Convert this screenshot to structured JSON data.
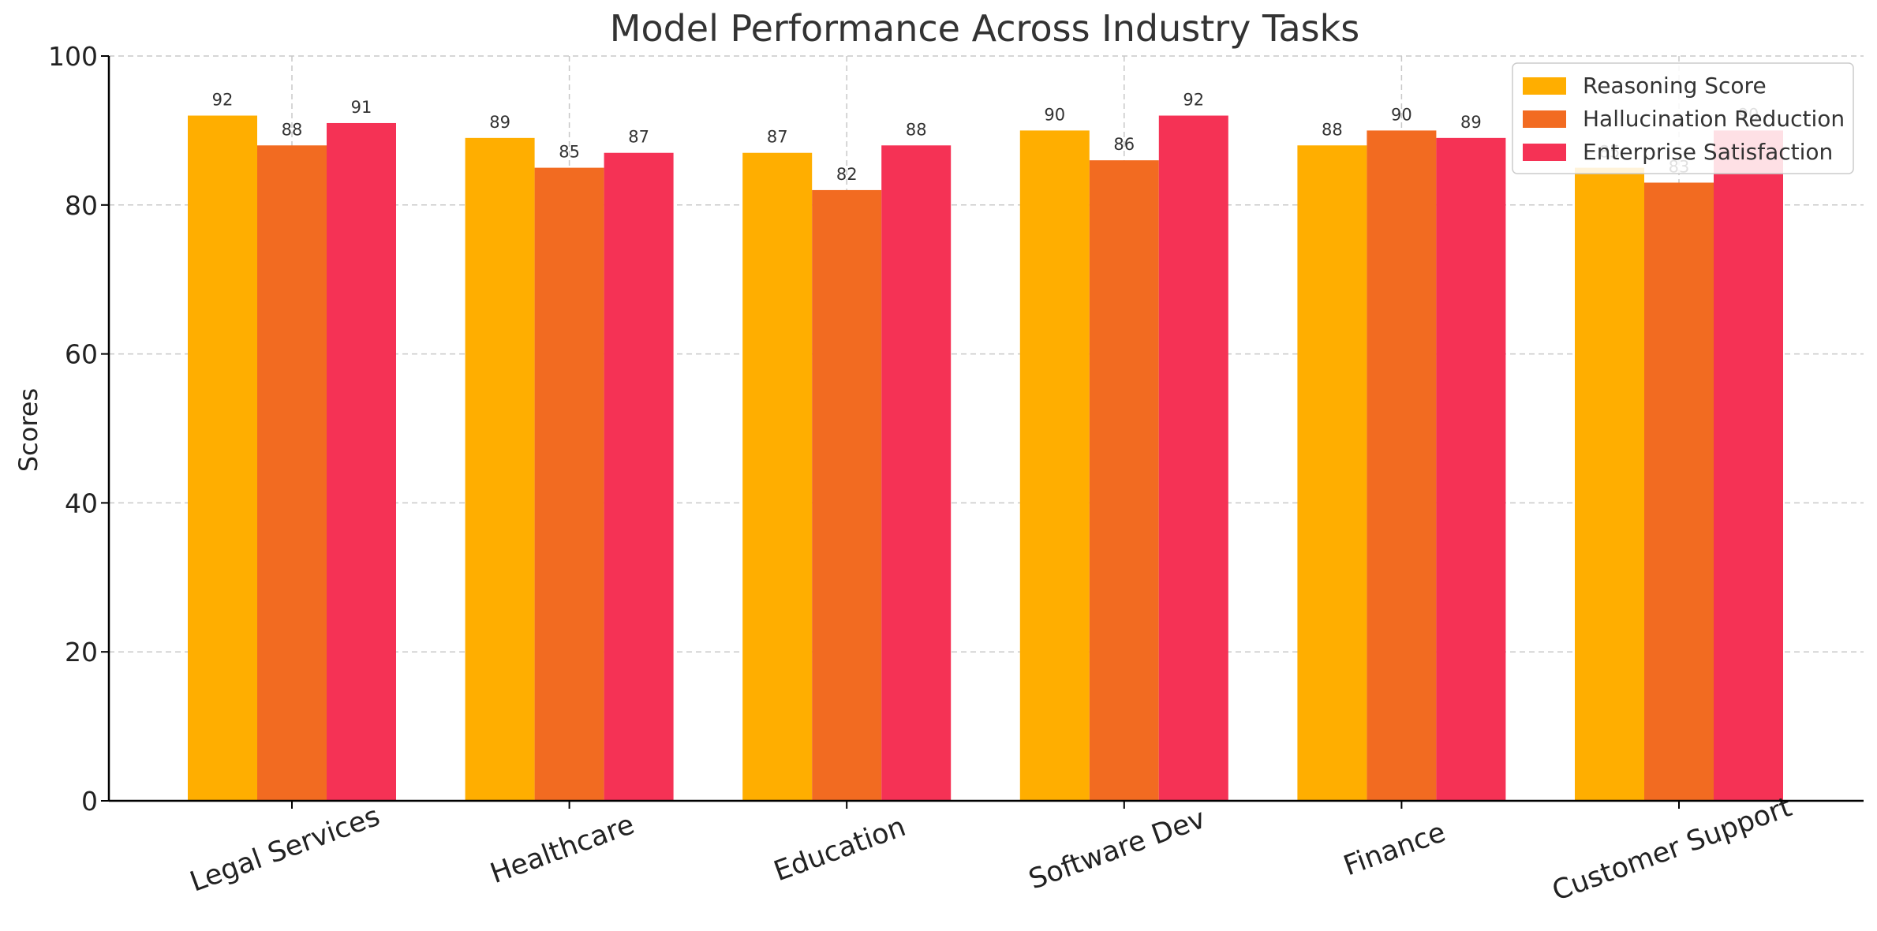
{
  "chart_data": {
    "type": "bar",
    "title": "Model Performance Across Industry Tasks",
    "xlabel": "",
    "ylabel": "Scores",
    "ylim": [
      0,
      100
    ],
    "yticks": [
      0,
      20,
      40,
      60,
      80,
      100
    ],
    "grid": true,
    "legend_position": "top-right",
    "categories": [
      "Legal Services",
      "Healthcare",
      "Education",
      "Software Dev",
      "Finance",
      "Customer Support"
    ],
    "series": [
      {
        "name": "Reasoning Score",
        "color": "#FFAE00",
        "values": [
          92,
          89,
          87,
          90,
          88,
          85
        ]
      },
      {
        "name": "Hallucination Reduction",
        "color": "#F26B21",
        "values": [
          88,
          85,
          82,
          86,
          90,
          83
        ]
      },
      {
        "name": "Enterprise Satisfaction",
        "color": "#F53255",
        "values": [
          91,
          87,
          88,
          92,
          89,
          90
        ]
      }
    ]
  }
}
